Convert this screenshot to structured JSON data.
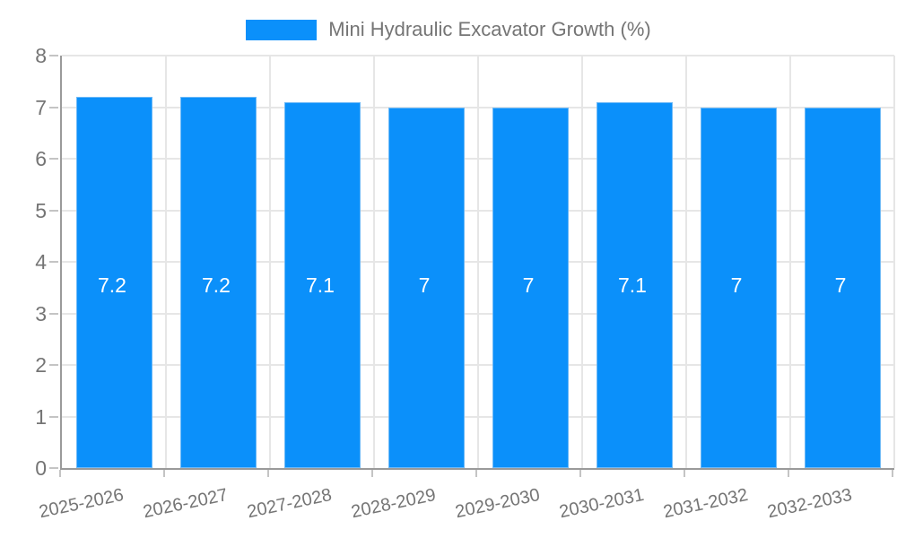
{
  "legend": {
    "label": "Mini Hydraulic Excavator Growth (%)"
  },
  "colors": {
    "bar_fill": "#0b90fa",
    "bar_border": "#6db9f7",
    "grid": "#e6e6e6",
    "axis": "#9a9a9a",
    "tick": "#c4c4c4",
    "text": "#757575",
    "bar_label": "#ffffff",
    "background": "#ffffff"
  },
  "chart_data": {
    "type": "bar",
    "categories": [
      "2025-2026",
      "2026-2027",
      "2027-2028",
      "2028-2029",
      "2029-2030",
      "2030-2031",
      "2031-2032",
      "2032-2033"
    ],
    "series": [
      {
        "name": "Mini Hydraulic Excavator Growth (%)",
        "values": [
          7.2,
          7.2,
          7.1,
          7,
          7,
          7.1,
          7,
          7
        ],
        "labels": [
          "7.2",
          "7.2",
          "7.1",
          "7",
          "7",
          "7.1",
          "7",
          "7"
        ],
        "color": "#0b90fa"
      }
    ],
    "title": "",
    "xlabel": "",
    "ylabel": "",
    "ylim": [
      0,
      8
    ],
    "yticks": [
      0,
      1,
      2,
      3,
      4,
      5,
      6,
      7,
      8
    ],
    "grid": true,
    "legend_position": "top-center",
    "value_labels_inside": true,
    "x_label_rotation_deg": -12
  }
}
